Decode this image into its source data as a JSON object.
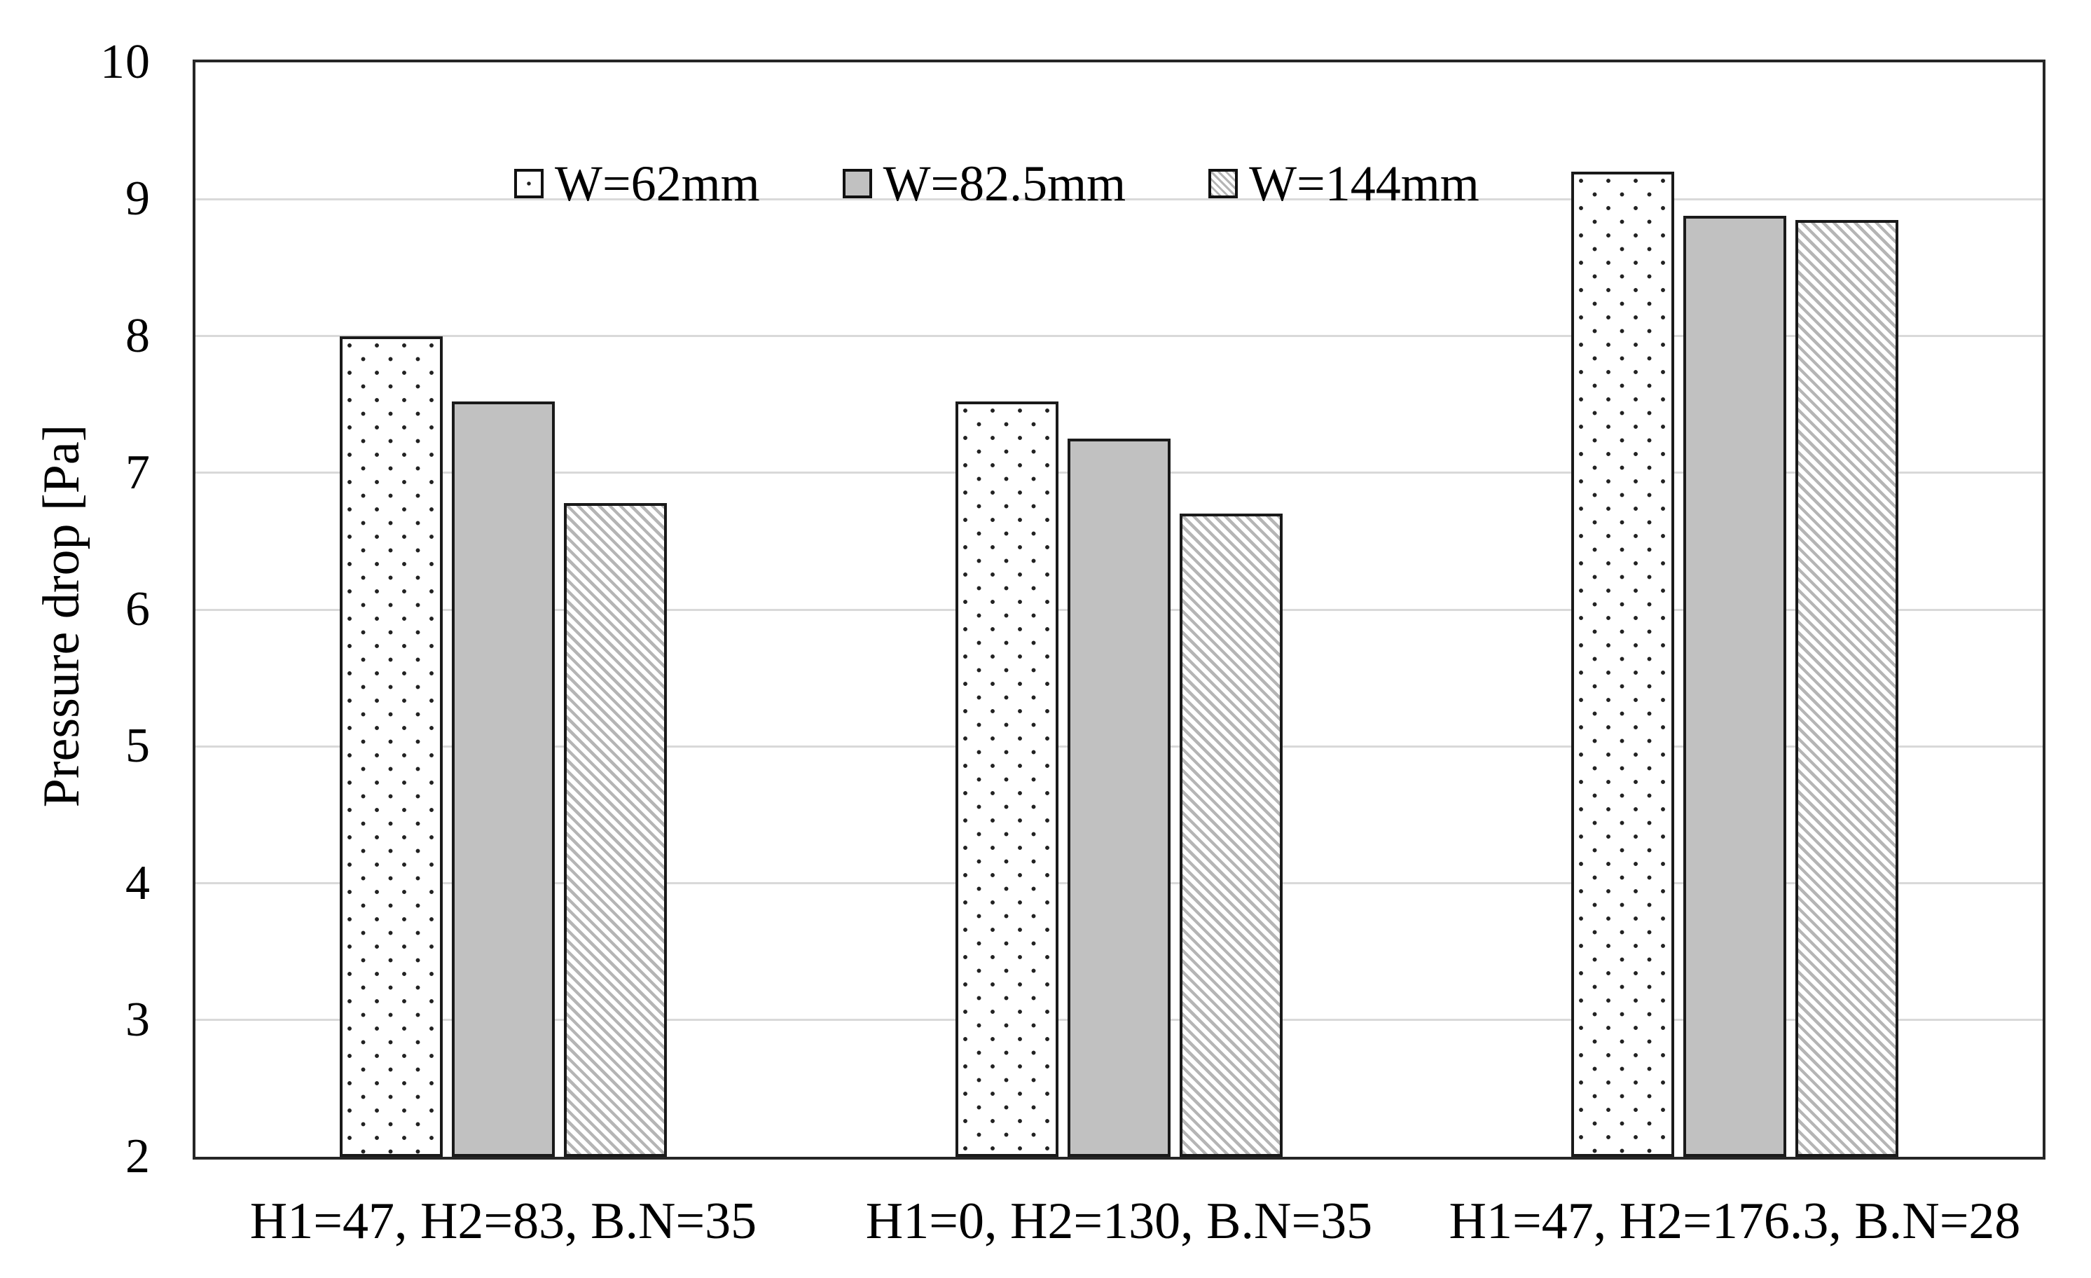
{
  "chart_data": {
    "type": "bar",
    "title": "",
    "xlabel": "",
    "ylabel": "Pressure drop [Pa]",
    "ylim": [
      2,
      10
    ],
    "ytick_step": 1,
    "ytick_labels": [
      "2",
      "3",
      "4",
      "5",
      "6",
      "7",
      "8",
      "9",
      "10"
    ],
    "grid": "horizontal",
    "legend_position": "top-left-inside",
    "categories": [
      "H1=47, H2=83, B.N=35",
      "H1=0, H2=130, B.N=35",
      "H1=47, H2=176.3, B.N=28"
    ],
    "series": [
      {
        "name": "W=62mm",
        "pattern": "dotted",
        "fill": "#ffffff",
        "values": [
          8.0,
          7.52,
          9.2
        ]
      },
      {
        "name": "W=82.5mm",
        "pattern": "solid",
        "fill": "#c1c1c1",
        "values": [
          7.52,
          7.25,
          8.88
        ]
      },
      {
        "name": "W=144mm",
        "pattern": "hatch",
        "fill": "#ffffff",
        "values": [
          6.78,
          6.7,
          8.85
        ]
      }
    ],
    "colors": {
      "axis_border": "#262626",
      "gridline": "#d9d9d9",
      "bar_border": "#1a1a1a",
      "dot": "#222222",
      "hatch_line": "#b5b5b5",
      "solid_fill": "#c1c1c1",
      "text": "#000000",
      "background": "#ffffff"
    }
  }
}
